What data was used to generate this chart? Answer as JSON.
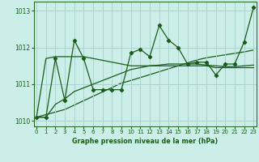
{
  "xlabel": "Graphe pression niveau de la mer (hPa)",
  "background_color": "#cceee8",
  "grid_color": "#aad4ce",
  "line_color": "#1a5c1a",
  "marker_color": "#1a5c1a",
  "axis_color": "#2d6e2d",
  "tick_color": "#1a5c1a",
  "x_values": [
    0,
    1,
    2,
    3,
    4,
    5,
    6,
    7,
    8,
    9,
    10,
    11,
    12,
    13,
    14,
    15,
    16,
    17,
    18,
    19,
    20,
    21,
    22,
    23
  ],
  "y_main": [
    1010.1,
    1010.1,
    1011.7,
    1010.55,
    1012.2,
    1011.7,
    1010.85,
    1010.85,
    1010.85,
    1010.85,
    1011.85,
    1011.95,
    1011.75,
    1012.6,
    1012.2,
    1012.0,
    1011.55,
    1011.6,
    1011.6,
    1011.25,
    1011.55,
    1011.55,
    1012.15,
    1013.1
  ],
  "y_smooth_flat": [
    1010.1,
    1011.7,
    1011.75,
    1011.75,
    1011.75,
    1011.75,
    1011.7,
    1011.65,
    1011.6,
    1011.55,
    1011.5,
    1011.5,
    1011.5,
    1011.5,
    1011.5,
    1011.5,
    1011.5,
    1011.5,
    1011.5,
    1011.45,
    1011.45,
    1011.45,
    1011.45,
    1011.45
  ],
  "y_smooth_rise": [
    1010.1,
    1010.1,
    1010.45,
    1010.6,
    1010.8,
    1010.9,
    1011.0,
    1011.1,
    1011.2,
    1011.3,
    1011.4,
    1011.45,
    1011.5,
    1011.52,
    1011.55,
    1011.55,
    1011.55,
    1011.55,
    1011.52,
    1011.5,
    1011.48,
    1011.48,
    1011.5,
    1011.52
  ],
  "y_trend": [
    1010.1,
    1010.17,
    1010.24,
    1010.31,
    1010.43,
    1010.55,
    1010.67,
    1010.79,
    1010.91,
    1011.03,
    1011.1,
    1011.18,
    1011.26,
    1011.34,
    1011.42,
    1011.5,
    1011.58,
    1011.66,
    1011.72,
    1011.76,
    1011.8,
    1011.84,
    1011.88,
    1011.93
  ],
  "ylim": [
    1009.85,
    1013.25
  ],
  "xlim": [
    -0.3,
    23.3
  ],
  "yticks": [
    1010,
    1011,
    1012,
    1013
  ],
  "xticks": [
    0,
    1,
    2,
    3,
    4,
    5,
    6,
    7,
    8,
    9,
    10,
    11,
    12,
    13,
    14,
    15,
    16,
    17,
    18,
    19,
    20,
    21,
    22,
    23
  ]
}
